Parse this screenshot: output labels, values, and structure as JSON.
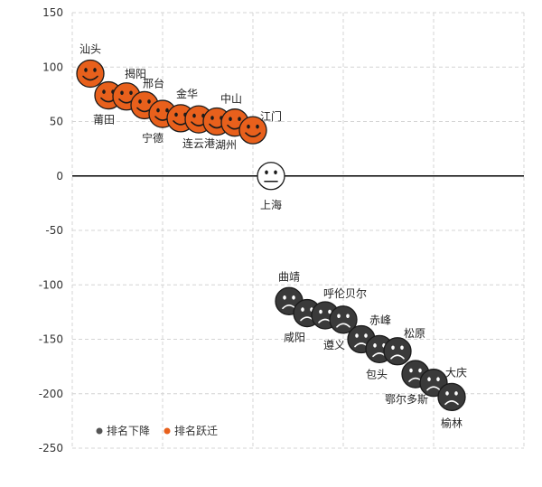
{
  "chart_data": {
    "type": "scatter",
    "title": "",
    "xlabel": "",
    "ylabel": "",
    "ylim": [
      -250,
      150
    ],
    "yticks": [
      150,
      100,
      50,
      0,
      -50,
      -100,
      -150,
      -200,
      -250
    ],
    "grid": true,
    "legend_position": "bottom-left",
    "colors": {
      "up": "#e8601c",
      "down": "#3a3a3a",
      "neutral": "#ffffff"
    },
    "legend": [
      {
        "label": "排名下降",
        "color": "#555555"
      },
      {
        "label": "排名跃迁",
        "color": "#e8601c"
      }
    ],
    "points": [
      {
        "name": "汕头",
        "x": 1,
        "y": 94,
        "group": "up"
      },
      {
        "name": "莆田",
        "x": 2,
        "y": 74,
        "group": "up"
      },
      {
        "name": "揭阳",
        "x": 3,
        "y": 73,
        "group": "up"
      },
      {
        "name": "邢台",
        "x": 4,
        "y": 65,
        "group": "up"
      },
      {
        "name": "宁德",
        "x": 5,
        "y": 57,
        "group": "up"
      },
      {
        "name": "金华",
        "x": 6,
        "y": 53,
        "group": "up"
      },
      {
        "name": "连云港",
        "x": 7,
        "y": 52,
        "group": "up"
      },
      {
        "name": "中山",
        "x": 8,
        "y": 50,
        "group": "up"
      },
      {
        "name": "湖州",
        "x": 9,
        "y": 49,
        "group": "up"
      },
      {
        "name": "江门",
        "x": 10,
        "y": 42,
        "group": "up"
      },
      {
        "name": "上海",
        "x": 11,
        "y": 0,
        "group": "neutral"
      },
      {
        "name": "曲靖",
        "x": 12,
        "y": -115,
        "group": "down"
      },
      {
        "name": "咸阳",
        "x": 13,
        "y": -126,
        "group": "down"
      },
      {
        "name": "呼伦贝尔",
        "x": 14,
        "y": -128,
        "group": "down"
      },
      {
        "name": "遵义",
        "x": 15,
        "y": -132,
        "group": "down"
      },
      {
        "name": "赤峰",
        "x": 16,
        "y": -150,
        "group": "down"
      },
      {
        "name": "包头",
        "x": 17,
        "y": -159,
        "group": "down"
      },
      {
        "name": "松原",
        "x": 18,
        "y": -161,
        "group": "down"
      },
      {
        "name": "鄂尔多斯",
        "x": 19,
        "y": -182,
        "group": "down"
      },
      {
        "name": "大庆",
        "x": 20,
        "y": -190,
        "group": "down"
      },
      {
        "name": "榆林",
        "x": 21,
        "y": -203,
        "group": "down"
      }
    ]
  }
}
